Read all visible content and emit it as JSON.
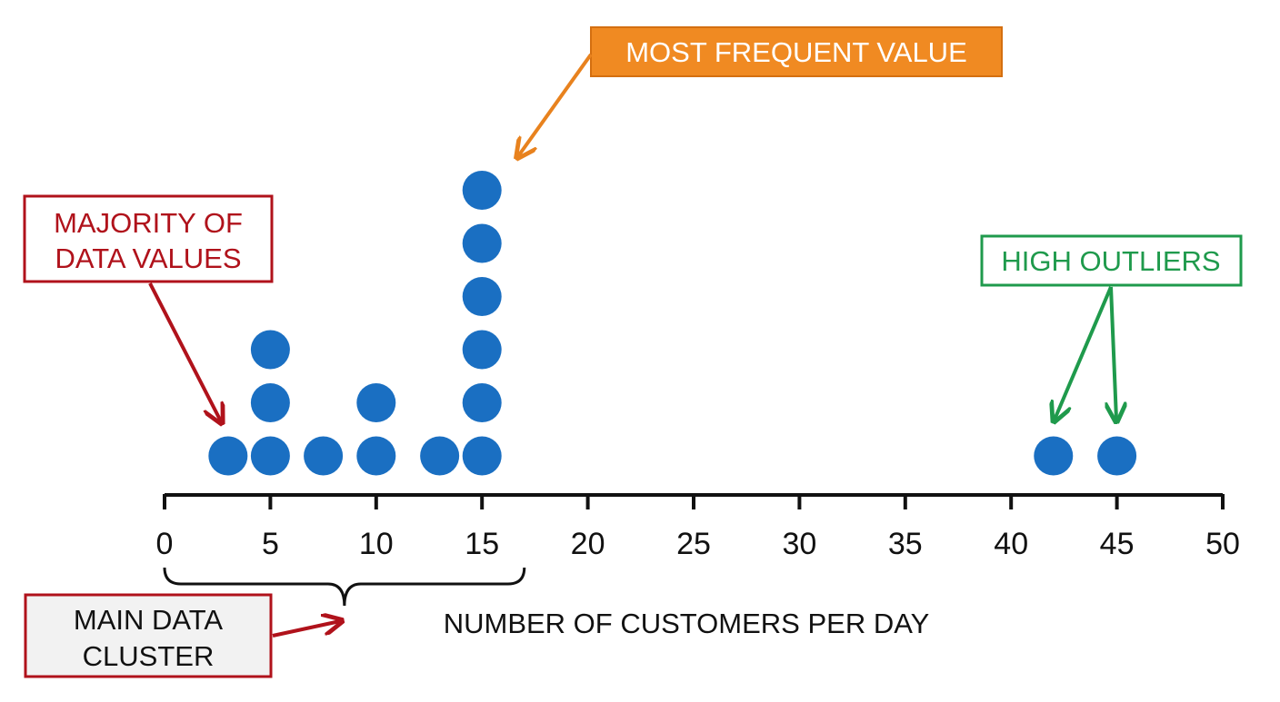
{
  "chart_data": {
    "type": "scatter",
    "subtype": "dot-plot",
    "title": "",
    "xlabel": "NUMBER OF CUSTOMERS PER DAY",
    "ylabel": "",
    "xlim": [
      0,
      50
    ],
    "xticks": [
      0,
      5,
      10,
      15,
      20,
      25,
      30,
      35,
      40,
      45,
      50
    ],
    "grid": false,
    "dot_color": "#1a6fc2",
    "points": [
      {
        "x": 3,
        "count": 1
      },
      {
        "x": 5,
        "count": 3
      },
      {
        "x": 7.5,
        "count": 1
      },
      {
        "x": 10,
        "count": 2
      },
      {
        "x": 13,
        "count": 1
      },
      {
        "x": 15,
        "count": 6
      },
      {
        "x": 42,
        "count": 1
      },
      {
        "x": 45,
        "count": 1
      }
    ],
    "annotations": [
      {
        "id": "most-frequent",
        "text": [
          "MOST FREQUENT VALUE"
        ],
        "color": "#e8821e",
        "style": "filled",
        "targets": [
          {
            "x": 15,
            "level": 6
          }
        ]
      },
      {
        "id": "majority",
        "text": [
          "MAJORITY OF",
          "DATA VALUES"
        ],
        "color": "#b0121b",
        "style": "outlined",
        "targets": [
          {
            "x": 3,
            "level": 1
          }
        ]
      },
      {
        "id": "high-outliers",
        "text": [
          "HIGH OUTLIERS"
        ],
        "color": "#1f9a4c",
        "style": "outlined",
        "targets": [
          {
            "x": 42,
            "level": 1
          },
          {
            "x": 45,
            "level": 1
          }
        ]
      },
      {
        "id": "main-cluster",
        "text": [
          "MAIN DATA",
          "CLUSTER"
        ],
        "color": "#b0121b",
        "style": "outlined-gray",
        "targets": []
      }
    ],
    "bracket": {
      "from": 0,
      "to": 17
    }
  }
}
